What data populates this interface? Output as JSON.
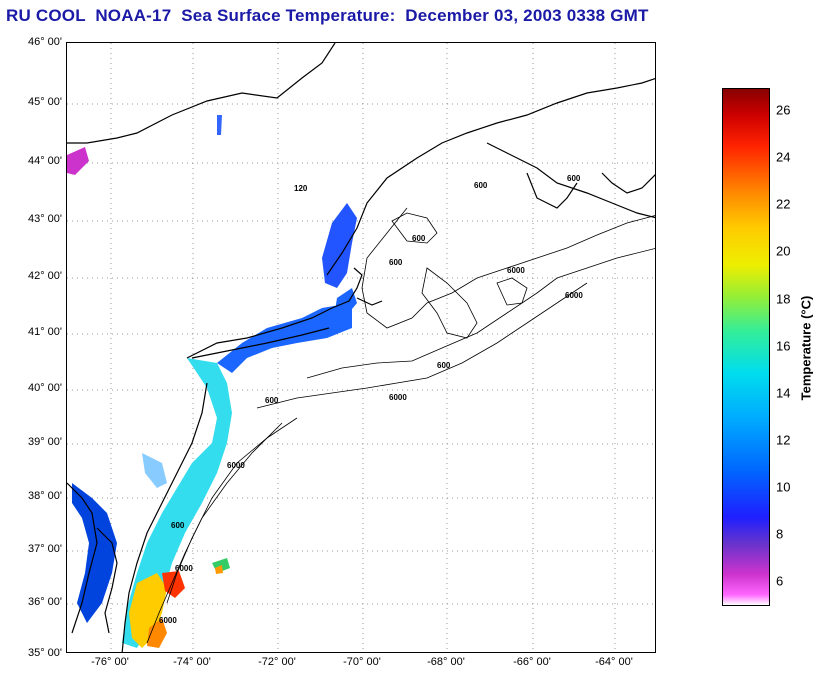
{
  "title": "RU COOL  NOAA-17  Sea Surface Temperature:  December 03, 2003 0338 GMT",
  "lat_labels": [
    "46° 00'",
    "45° 00'",
    "44° 00'",
    "43° 00'",
    "42° 00'",
    "41° 00'",
    "40° 00'",
    "39° 00'",
    "38° 00'",
    "37° 00'",
    "36° 00'",
    "35° 00'"
  ],
  "lon_labels": [
    "-76° 00'",
    "-74° 00'",
    "-72° 00'",
    "-70° 00'",
    "-68° 00'",
    "-66° 00'",
    "-64° 00'"
  ],
  "colorbar": {
    "label": "Temperature (°C)",
    "ticks": [
      "6",
      "8",
      "10",
      "12",
      "14",
      "16",
      "18",
      "20",
      "22",
      "24",
      "26"
    ],
    "range": [
      5,
      27
    ]
  },
  "contour_labels": [
    "120",
    "600",
    "600",
    "6000",
    "600",
    "600",
    "6000",
    "6000",
    "600",
    "6000",
    "600",
    "6000",
    "600",
    "6000"
  ],
  "colors": {
    "title": "#1a1aa6",
    "grid": "#9a9a9a",
    "land_line": "#000000"
  }
}
